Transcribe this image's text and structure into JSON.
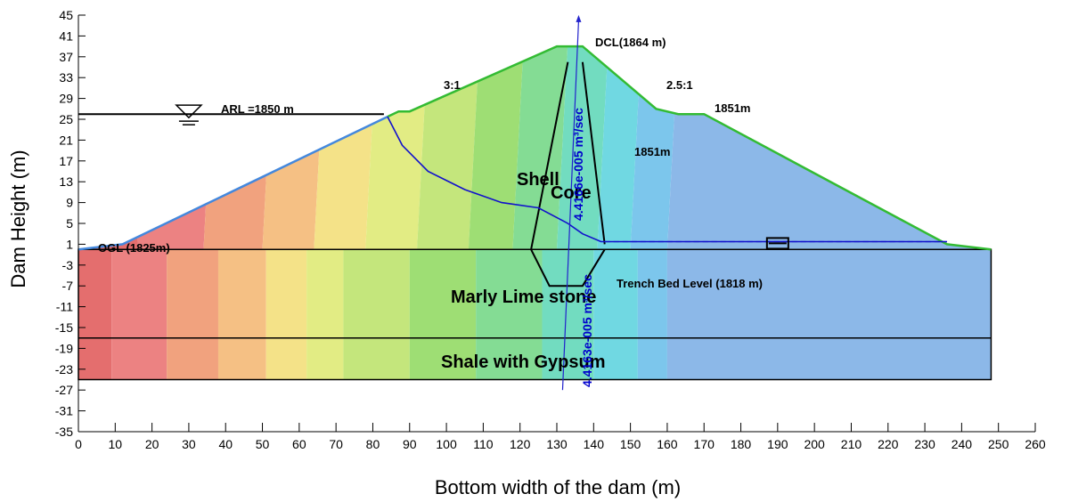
{
  "chart_data": {
    "type": "diagram",
    "xlabel": "Bottom width of the dam (m)",
    "ylabel": "Dam Height (m)",
    "xlim": [
      0,
      260
    ],
    "ylim": [
      -35,
      45
    ],
    "x_ticks": [
      0,
      10,
      20,
      30,
      40,
      50,
      60,
      70,
      80,
      90,
      100,
      110,
      120,
      130,
      140,
      150,
      160,
      170,
      180,
      190,
      200,
      210,
      220,
      230,
      240,
      250,
      260
    ],
    "y_ticks": [
      45,
      41,
      37,
      33,
      29,
      25,
      21,
      17,
      13,
      9,
      5,
      1,
      -3,
      -7,
      -11,
      -15,
      -19,
      -23,
      -27,
      -31,
      -35
    ],
    "annotations": {
      "arl": "ARL =1850 m",
      "dcl": "DCL(1864 m)",
      "ogl": "OGL (1825m)",
      "slope_upstream": "3:1",
      "slope_downstream": "2.5:1",
      "berm_level": "1851m",
      "phreatic_level": "1851m",
      "shell": "Shell",
      "core": "Core",
      "marly": "Marly Lime stone",
      "shale": "Shale with Gypsum",
      "trench": "Trench Bed Level (1818 m)",
      "flux_upper": "4.4166e-005 m³/sec",
      "flux_lower": "4.4163e-005 m³/sec"
    },
    "geometry": {
      "dam_outline": [
        [
          0,
          0
        ],
        [
          12,
          1
        ],
        [
          84,
          25.5
        ],
        [
          87,
          26.5
        ],
        [
          90,
          26.5
        ],
        [
          130,
          39
        ],
        [
          137,
          39
        ],
        [
          157,
          27
        ],
        [
          163,
          26
        ],
        [
          170,
          26
        ],
        [
          236,
          1
        ],
        [
          248,
          0
        ]
      ],
      "core_left": [
        [
          123,
          0
        ],
        [
          133,
          36
        ]
      ],
      "core_right": [
        [
          137,
          36
        ],
        [
          143,
          1
        ]
      ],
      "trench": [
        [
          123,
          0
        ],
        [
          128,
          -7
        ],
        [
          137,
          -7
        ],
        [
          143,
          0
        ]
      ],
      "foundation_top": 0,
      "layer_boundary": -17,
      "foundation_bottom": -25,
      "foundation_right": 248,
      "phreatic_line": [
        [
          84,
          25.5
        ],
        [
          88,
          20
        ],
        [
          95,
          15
        ],
        [
          105,
          11.5
        ],
        [
          115,
          9
        ],
        [
          125,
          8
        ],
        [
          133,
          5
        ],
        [
          137,
          3
        ],
        [
          142,
          1.5
        ],
        [
          236,
          1.5
        ]
      ],
      "upstream_water": [
        [
          0,
          26
        ],
        [
          83,
          26
        ]
      ],
      "flux_section_x": 133.5
    },
    "contour_colors": [
      "#e46e6e",
      "#ec8282",
      "#f1a27e",
      "#f5c084",
      "#f4e288",
      "#e2ec84",
      "#c4e67c",
      "#9ede74",
      "#84dc94",
      "#72dcc0",
      "#70d8e2",
      "#7cc6ec",
      "#8cb8e8"
    ],
    "colors": {
      "dam_outline": "#33bb33",
      "upstream_face": "#4488dd",
      "phreatic": "#1111cc",
      "flux_line": "#2222cc",
      "lines": "#000000"
    }
  }
}
